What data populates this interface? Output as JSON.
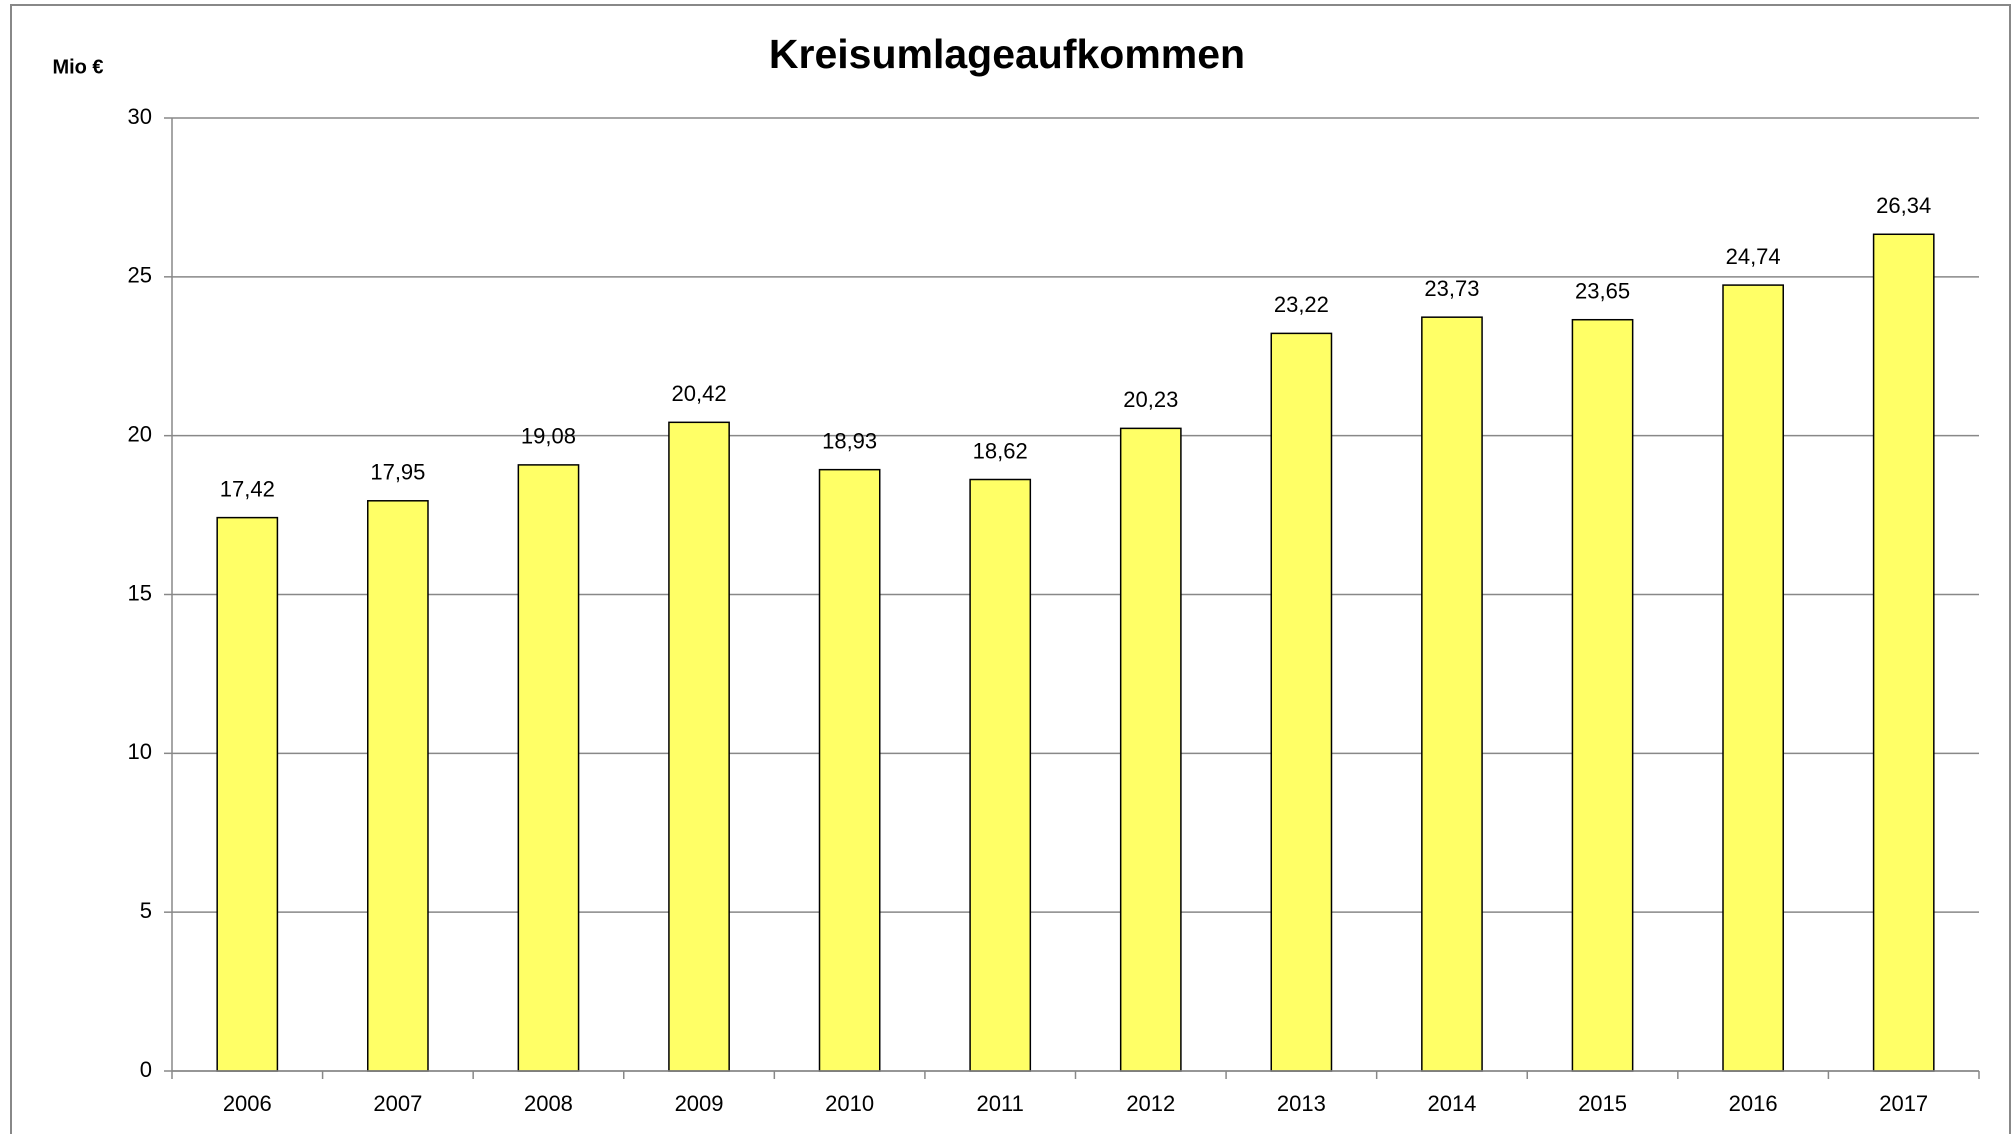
{
  "chart_data": {
    "type": "bar",
    "title": "Kreisumlageaufkommen",
    "y_label": "Mio €",
    "categories": [
      "2006",
      "2007",
      "2008",
      "2009",
      "2010",
      "2011",
      "2012",
      "2013",
      "2014",
      "2015",
      "2016",
      "2017"
    ],
    "values": [
      17.42,
      17.95,
      19.08,
      20.42,
      18.93,
      18.62,
      20.23,
      23.22,
      23.73,
      23.65,
      24.74,
      26.34
    ],
    "value_labels": [
      "17,42",
      "17,95",
      "19,08",
      "20,42",
      "18,93",
      "18,62",
      "20,23",
      "23,22",
      "23,73",
      "23,65",
      "24,74",
      "26,34"
    ],
    "color": "#ffff66",
    "ylim": [
      0,
      30
    ],
    "yticks": [
      0,
      5,
      10,
      15,
      20,
      25,
      30
    ],
    "grid": true
  }
}
